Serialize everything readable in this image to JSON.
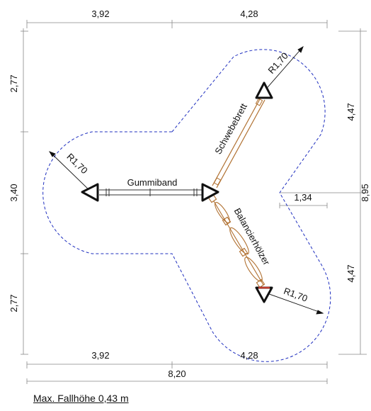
{
  "dimensions": {
    "top_left": "3,92",
    "top_right": "4,28",
    "left_upper": "2,77",
    "left_middle": "3,40",
    "left_lower": "2,77",
    "right_upper": "4,47",
    "right_lower": "4,47",
    "right_total": "8,95",
    "inner_offset": "1,34",
    "bottom_left": "3,92",
    "bottom_right": "4,28",
    "bottom_total": "8,20"
  },
  "radii": {
    "left": "R1,70",
    "top_right": "R1,70",
    "bottom_right": "R1,70"
  },
  "equipment": {
    "gummiband": "Gummiband",
    "schwebebrett": "Schwebebrett",
    "balancierhoelzer": "Balancierhölzer"
  },
  "footer": {
    "fall_height": "Max. Fallhöhe 0,43 m"
  },
  "colors": {
    "boundary": "#1f2fbf",
    "beam": "#b07030",
    "dimension_line": "#777777"
  }
}
